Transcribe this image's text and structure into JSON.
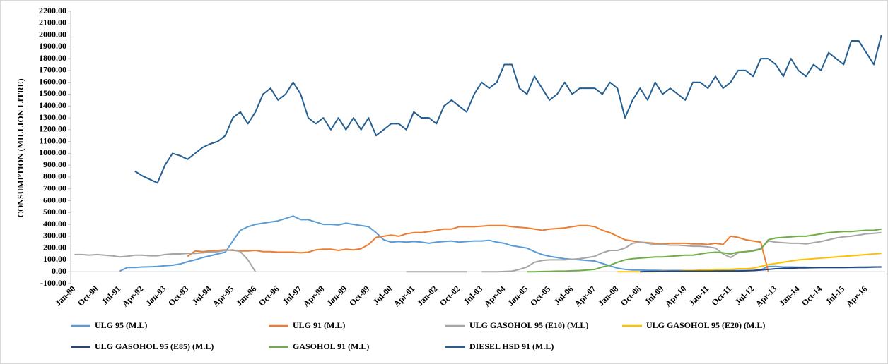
{
  "chart_data": {
    "type": "line",
    "y_label": "CONSUMPTION  (MILLION LITRE)",
    "categories": [
      "Jan-90",
      null,
      null,
      "Oct-90",
      null,
      null,
      "Jul-91",
      null,
      null,
      "Apr-92",
      null,
      null,
      "Jan-93",
      null,
      null,
      "Oct-93",
      null,
      null,
      "Jul-94",
      null,
      null,
      "Apr-95",
      null,
      null,
      "Jan-96",
      null,
      null,
      "Oct-96",
      null,
      null,
      "Jul-97",
      null,
      null,
      "Apr-98",
      null,
      null,
      "Jan-99",
      null,
      null,
      "Oct-99",
      null,
      null,
      "Jul-00",
      null,
      null,
      "Apr-01",
      null,
      null,
      "Jan-02",
      null,
      null,
      "Oct-02",
      null,
      null,
      "Jul-03",
      null,
      null,
      "Apr-04",
      null,
      null,
      "Jan-05",
      null,
      null,
      "Oct-05",
      null,
      null,
      "Jul-06",
      null,
      null,
      "Apr-07",
      null,
      null,
      "Jan-08",
      null,
      null,
      "Oct-08",
      null,
      null,
      "Jul-09",
      null,
      null,
      "Apr-10",
      null,
      null,
      "Jan-11",
      null,
      null,
      "Oct-11",
      null,
      null,
      "Jul-12",
      null,
      null,
      "Apr-13",
      null,
      null,
      "Jan-14",
      null,
      null,
      "Oct-14",
      null,
      null,
      "Jul-15",
      null,
      null,
      "Apr-16",
      null,
      null
    ],
    "series": [
      {
        "name": "ULG 95 (M.L)",
        "color": "#5b9bd5",
        "values": [
          null,
          null,
          null,
          null,
          null,
          null,
          5,
          35,
          35,
          40,
          42,
          45,
          50,
          55,
          65,
          85,
          100,
          120,
          135,
          150,
          165,
          260,
          350,
          380,
          400,
          410,
          420,
          430,
          450,
          470,
          440,
          440,
          420,
          400,
          400,
          395,
          410,
          400,
          390,
          380,
          330,
          270,
          250,
          255,
          250,
          255,
          250,
          240,
          250,
          255,
          260,
          250,
          255,
          260,
          260,
          265,
          250,
          240,
          220,
          210,
          200,
          170,
          145,
          130,
          120,
          110,
          105,
          100,
          95,
          90,
          70,
          50,
          30,
          20,
          15,
          15,
          12,
          12,
          10,
          10,
          10,
          10,
          10,
          10,
          10,
          10,
          10,
          10,
          10,
          10,
          10,
          15,
          45,
          45,
          40,
          40,
          38,
          38,
          36,
          36,
          35,
          35,
          35,
          35,
          35,
          35,
          38,
          40
        ]
      },
      {
        "name": "ULG 91 (M.L)",
        "color": "#ed7d31",
        "values": [
          null,
          null,
          null,
          null,
          null,
          null,
          null,
          null,
          null,
          null,
          null,
          null,
          null,
          null,
          null,
          130,
          175,
          170,
          175,
          180,
          185,
          180,
          175,
          175,
          180,
          170,
          170,
          165,
          165,
          165,
          160,
          165,
          185,
          190,
          190,
          180,
          190,
          185,
          195,
          230,
          290,
          300,
          310,
          300,
          320,
          330,
          330,
          340,
          350,
          360,
          360,
          380,
          380,
          380,
          385,
          390,
          390,
          390,
          380,
          375,
          370,
          360,
          350,
          360,
          365,
          370,
          380,
          390,
          390,
          380,
          350,
          330,
          300,
          270,
          260,
          250,
          245,
          240,
          235,
          240,
          240,
          240,
          235,
          235,
          230,
          240,
          230,
          300,
          290,
          270,
          260,
          250,
          0,
          null,
          null,
          null,
          null,
          null,
          null,
          null,
          null,
          null,
          null,
          null,
          null,
          null,
          null,
          null
        ]
      },
      {
        "name": "ULG GASOHOL 95 (E10) (M.L)",
        "color": "#a5a5a5",
        "values": [
          145,
          145,
          140,
          145,
          140,
          135,
          125,
          130,
          140,
          140,
          135,
          135,
          145,
          150,
          150,
          155,
          155,
          160,
          165,
          170,
          180,
          185,
          170,
          100,
          0,
          null,
          null,
          null,
          null,
          null,
          null,
          null,
          null,
          null,
          null,
          null,
          null,
          null,
          null,
          null,
          null,
          null,
          null,
          null,
          0,
          0,
          0,
          0,
          0,
          0,
          0,
          0,
          0,
          null,
          0,
          0,
          0,
          2,
          5,
          20,
          40,
          80,
          95,
          100,
          100,
          100,
          105,
          110,
          120,
          130,
          160,
          180,
          180,
          200,
          240,
          250,
          240,
          230,
          230,
          225,
          225,
          220,
          215,
          215,
          210,
          200,
          150,
          120,
          160,
          170,
          180,
          195,
          260,
          250,
          245,
          240,
          240,
          235,
          245,
          255,
          270,
          285,
          295,
          300,
          310,
          320,
          325,
          330
        ]
      },
      {
        "name": "ULG GASOHOL 95 (E20) (M.L)",
        "color": "#ffc000",
        "values": [
          null,
          null,
          null,
          null,
          null,
          null,
          null,
          null,
          null,
          null,
          null,
          null,
          null,
          null,
          null,
          null,
          null,
          null,
          null,
          null,
          null,
          null,
          null,
          null,
          null,
          null,
          null,
          null,
          null,
          null,
          null,
          null,
          null,
          null,
          null,
          null,
          null,
          null,
          null,
          null,
          null,
          null,
          null,
          null,
          null,
          null,
          null,
          null,
          null,
          null,
          null,
          null,
          null,
          null,
          null,
          null,
          null,
          null,
          null,
          null,
          null,
          null,
          null,
          null,
          null,
          null,
          null,
          null,
          null,
          null,
          null,
          null,
          0,
          0,
          0,
          0,
          0,
          0,
          5,
          5,
          5,
          10,
          10,
          15,
          15,
          20,
          20,
          20,
          25,
          25,
          30,
          45,
          60,
          70,
          80,
          90,
          100,
          105,
          110,
          115,
          120,
          125,
          130,
          135,
          140,
          145,
          150,
          155
        ]
      },
      {
        "name": "ULG GASOHOL 95 (E85) (M.L)",
        "color": "#264478",
        "values": [
          null,
          null,
          null,
          null,
          null,
          null,
          null,
          null,
          null,
          null,
          null,
          null,
          null,
          null,
          null,
          null,
          null,
          null,
          null,
          null,
          null,
          null,
          null,
          null,
          null,
          null,
          null,
          null,
          null,
          null,
          null,
          null,
          null,
          null,
          null,
          null,
          null,
          null,
          null,
          null,
          null,
          null,
          null,
          null,
          null,
          null,
          null,
          null,
          null,
          null,
          null,
          null,
          null,
          null,
          null,
          null,
          null,
          null,
          null,
          null,
          null,
          null,
          null,
          null,
          null,
          null,
          null,
          null,
          null,
          null,
          null,
          null,
          null,
          null,
          null,
          0,
          2,
          3,
          3,
          4,
          4,
          5,
          5,
          5,
          5,
          5,
          6,
          6,
          6,
          8,
          10,
          15,
          20,
          25,
          28,
          30,
          32,
          33,
          34,
          35,
          35,
          36,
          36,
          37,
          38,
          38,
          40,
          40
        ]
      },
      {
        "name": "GASOHOL 91 (M.L)",
        "color": "#70ad47",
        "values": [
          null,
          null,
          null,
          null,
          null,
          null,
          null,
          null,
          null,
          null,
          null,
          null,
          null,
          null,
          null,
          null,
          null,
          null,
          null,
          null,
          null,
          null,
          null,
          null,
          null,
          null,
          null,
          null,
          null,
          null,
          null,
          null,
          null,
          null,
          null,
          null,
          null,
          null,
          null,
          null,
          null,
          null,
          null,
          null,
          null,
          null,
          null,
          null,
          null,
          null,
          null,
          null,
          null,
          null,
          null,
          null,
          null,
          null,
          null,
          null,
          0,
          0,
          2,
          3,
          5,
          5,
          8,
          10,
          15,
          20,
          40,
          55,
          80,
          100,
          110,
          115,
          120,
          125,
          125,
          130,
          135,
          140,
          140,
          150,
          160,
          165,
          160,
          150,
          165,
          170,
          175,
          190,
          270,
          285,
          290,
          295,
          300,
          300,
          310,
          320,
          330,
          335,
          340,
          340,
          345,
          350,
          350,
          360
        ]
      },
      {
        "name": "DIESEL HSD 91 (M.L)",
        "color": "#255e91",
        "values": [
          null,
          null,
          null,
          null,
          null,
          null,
          null,
          null,
          850,
          810,
          780,
          750,
          900,
          1000,
          980,
          950,
          1000,
          1050,
          1080,
          1100,
          1150,
          1300,
          1350,
          1250,
          1350,
          1500,
          1550,
          1450,
          1500,
          1600,
          1500,
          1300,
          1250,
          1300,
          1200,
          1300,
          1200,
          1300,
          1200,
          1300,
          1150,
          1200,
          1250,
          1250,
          1200,
          1350,
          1300,
          1300,
          1250,
          1400,
          1450,
          1400,
          1350,
          1500,
          1600,
          1550,
          1600,
          1750,
          1750,
          1550,
          1500,
          1650,
          1550,
          1450,
          1500,
          1600,
          1500,
          1550,
          1550,
          1550,
          1500,
          1600,
          1550,
          1300,
          1450,
          1550,
          1450,
          1600,
          1500,
          1550,
          1500,
          1450,
          1600,
          1600,
          1550,
          1650,
          1550,
          1600,
          1700,
          1700,
          1650,
          1800,
          1800,
          1750,
          1650,
          1800,
          1700,
          1650,
          1750,
          1700,
          1850,
          1800,
          1750,
          1950,
          1950,
          1850,
          1750,
          2000
        ]
      }
    ],
    "ylim": [
      -100,
      2200
    ],
    "yticks": [
      {
        "value": -100,
        "label": "-100.00"
      },
      {
        "value": 0,
        "label": "0.00"
      },
      {
        "value": 100,
        "label": "100.00"
      },
      {
        "value": 200,
        "label": "200.00"
      },
      {
        "value": 300,
        "label": "300.00"
      },
      {
        "value": 400,
        "label": "400.00"
      },
      {
        "value": 500,
        "label": "500.00"
      },
      {
        "value": 600,
        "label": "600.00"
      },
      {
        "value": 700,
        "label": "700.00"
      },
      {
        "value": 800,
        "label": "800.00"
      },
      {
        "value": 900,
        "label": "900.00"
      },
      {
        "value": 1000,
        "label": "1000.00"
      },
      {
        "value": 1100,
        "label": "1100.00"
      },
      {
        "value": 1200,
        "label": "1200.00"
      },
      {
        "value": 1300,
        "label": "1300.00"
      },
      {
        "value": 1400,
        "label": "1400.00"
      },
      {
        "value": 1500,
        "label": "1500.00"
      },
      {
        "value": 1600,
        "label": "1600.00"
      },
      {
        "value": 1700,
        "label": "1700.00"
      },
      {
        "value": 1800,
        "label": "1800.00"
      },
      {
        "value": 1900,
        "label": "1900.00"
      },
      {
        "value": 2000,
        "label": "2000.00"
      },
      {
        "value": 2100,
        "label": "2100.00"
      },
      {
        "value": 2200,
        "label": "2200.00"
      }
    ],
    "grid": false,
    "legend": "bottom"
  }
}
